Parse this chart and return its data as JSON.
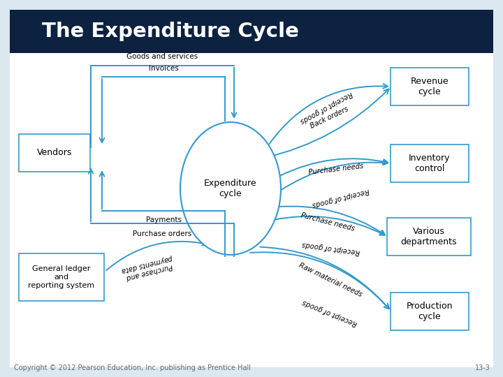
{
  "title": "The Expenditure Cycle",
  "title_bg_color": "#0d2240",
  "title_text_color": "#ffffff",
  "bg_color": "#dce8f0",
  "diagram_bg_color": "#ffffff",
  "ac": "#3399cc",
  "copyright": "Copyright © 2012 Pearson Education, Inc. publishing as Prentice Hall",
  "page_num": "13-3"
}
